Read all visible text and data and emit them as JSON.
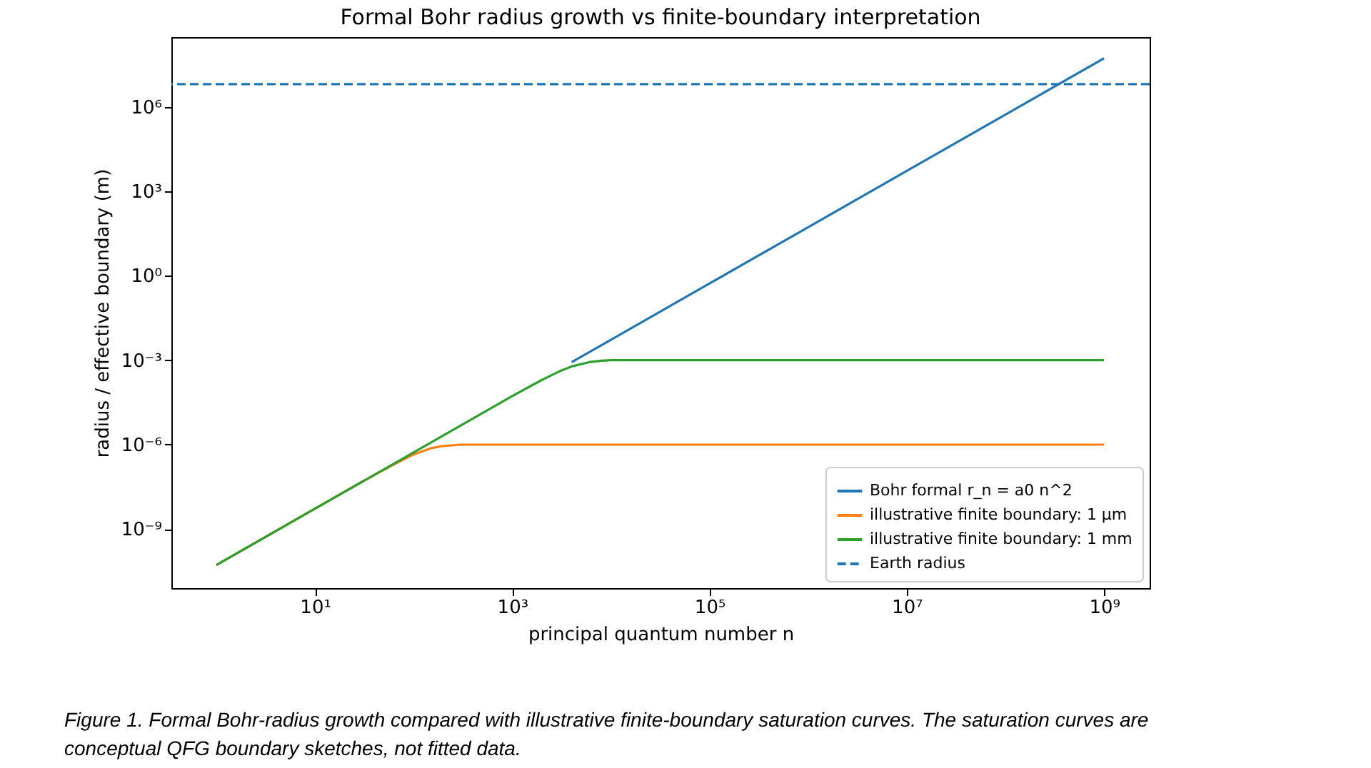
{
  "chart_data": {
    "type": "line",
    "title": "Formal Bohr radius growth vs finite-boundary interpretation",
    "xlabel": "principal quantum number n",
    "ylabel": "radius / effective boundary (m)",
    "log": "xy",
    "grid": false,
    "legend": "bottom right",
    "line_style": "solid",
    "xlim": [
      0.35,
      2900000000.0
    ],
    "ylim": [
      8e-12,
      300000000.0
    ],
    "xticks": [
      {
        "value": 10,
        "label": "10¹"
      },
      {
        "value": 1000,
        "label": "10³"
      },
      {
        "value": 100000,
        "label": "10⁵"
      },
      {
        "value": 10000000,
        "label": "10⁷"
      },
      {
        "value": 1000000000,
        "label": "10⁹"
      }
    ],
    "yticks": [
      {
        "value": 1e-09,
        "label": "10⁻⁹"
      },
      {
        "value": 1e-06,
        "label": "10⁻⁶"
      },
      {
        "value": 0.001,
        "label": "10⁻³"
      },
      {
        "value": 1,
        "label": "10⁰"
      },
      {
        "value": 1000,
        "label": "10³"
      },
      {
        "value": 1000000,
        "label": "10⁶"
      }
    ],
    "series": [
      {
        "name": "Bohr formal r_n = a0 n^2",
        "color": "#1f77b4",
        "x": [
          4000,
          10000,
          100000,
          1000000,
          10000000,
          100000000,
          1000000000
        ],
        "values": [
          0.00085,
          0.0053,
          0.53,
          53,
          5300,
          530000,
          53000000
        ]
      },
      {
        "name": "illustrative finite boundary: 1 µm",
        "color": "#ff7f0e",
        "x": [
          1,
          10,
          30,
          60,
          100,
          150,
          200,
          300,
          1000,
          1000000000
        ],
        "values": [
          5.3e-11,
          5.3e-09,
          4.8e-08,
          1.8e-07,
          4.5e-07,
          7.5e-07,
          9e-07,
          1e-06,
          1e-06,
          1e-06
        ]
      },
      {
        "name": "illustrative finite boundary: 1 mm",
        "color": "#2ca02c",
        "x": [
          1,
          10,
          100,
          1000,
          2000,
          3000,
          4000,
          6000,
          8000,
          10000,
          1000000000
        ],
        "values": [
          5.3e-11,
          5.3e-09,
          5.3e-07,
          5.3e-05,
          0.0002,
          0.0004,
          0.0006,
          0.00085,
          0.00096,
          0.001,
          0.001
        ]
      }
    ],
    "ref_lines": [
      {
        "axis": "y",
        "value": 6400000,
        "label": "Earth radius",
        "color": "#1f77b4",
        "line_style": "dashed"
      }
    ],
    "annotations": [
      "Figure 1. Formal Bohr-radius growth compared with illustrative finite-boundary saturation curves. The saturation curves are conceptual QFG boundary sketches, not fitted data."
    ]
  }
}
